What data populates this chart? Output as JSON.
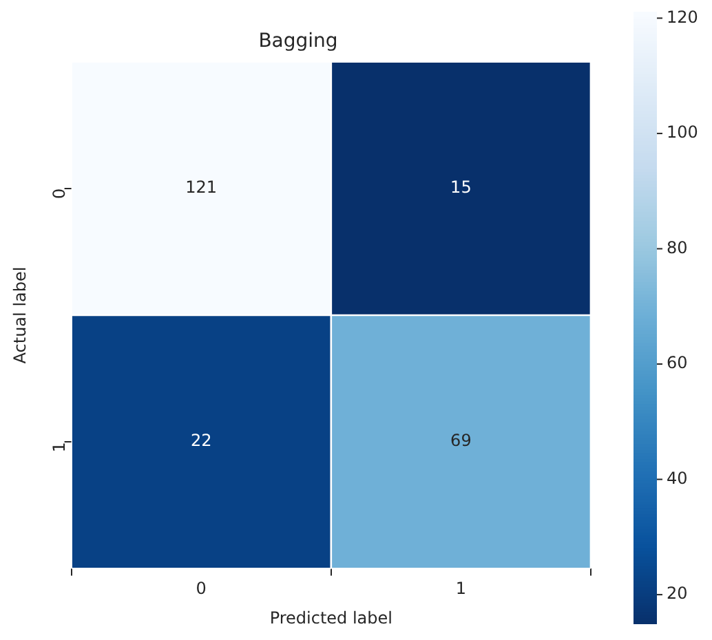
{
  "chart_data": {
    "type": "heatmap",
    "title": "Bagging",
    "xlabel": "Predicted label",
    "ylabel": "Actual label",
    "categories": [
      "0",
      "1"
    ],
    "y_categories": [
      "0",
      "1"
    ],
    "cells": [
      [
        121,
        15
      ],
      [
        22,
        69
      ]
    ],
    "clim": [
      15,
      121
    ],
    "cticks": [
      20,
      40,
      60,
      80,
      100,
      120
    ],
    "data_labels": true
  }
}
